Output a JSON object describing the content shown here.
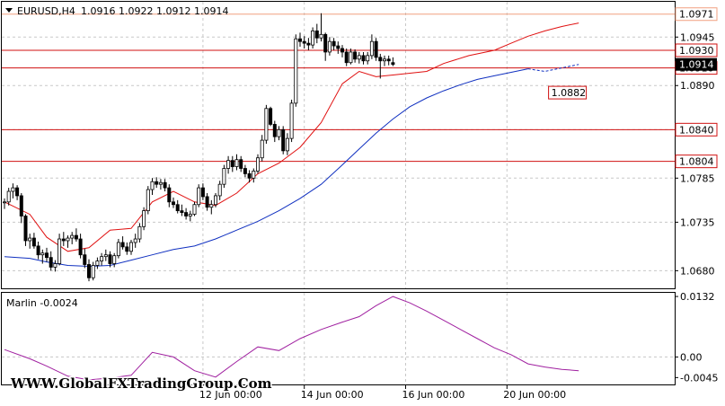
{
  "header": {
    "symbol": "EURUSD,H4",
    "ohlc": "1.0916 1.0922 1.0912 1.0914"
  },
  "indicator": {
    "name_value": "Marlin -0.0024",
    "color": "#a020a0",
    "axis_labels": [
      "0.0132",
      "0.00",
      "-0.0045"
    ]
  },
  "watermark": "WWW.GlobalFXTradingGroup.Com",
  "colors": {
    "bull_candle": "#ffffff",
    "bear_candle": "#000000",
    "ma_fast": "#e01010",
    "ma_slow": "#1030c0",
    "level_line": "#d01010",
    "top_level_line": "#f0a080"
  },
  "chart_data": {
    "type": "candlestick",
    "title": "EURUSD,H4",
    "ylim": [
      1.066,
      1.0985
    ],
    "y_ticks": [
      "1.0945",
      "1.0890",
      "1.0840",
      "1.0785",
      "1.0735",
      "1.0680"
    ],
    "x_ticks": [
      {
        "label": "12 Jun 00:00",
        "bar": 47
      },
      {
        "label": "14 Jun 00:00",
        "bar": 71
      },
      {
        "label": "16 Jun 00:00",
        "bar": 95
      },
      {
        "label": "20 Jun 00:00",
        "bar": 119
      }
    ],
    "levels": [
      {
        "value": 1.0971,
        "label": "1.0971",
        "style": "top"
      },
      {
        "value": 1.093,
        "label": "1.0930",
        "style": "level"
      },
      {
        "value": 1.091,
        "label": "1.0910",
        "style": "level"
      },
      {
        "value": 1.084,
        "label": "1.0840",
        "style": "level"
      },
      {
        "value": 1.0804,
        "label": "1.0804",
        "style": "level"
      }
    ],
    "current_price": {
      "value": 1.0914,
      "label": "1.0914"
    },
    "ma_projection": {
      "value": 1.0882,
      "label": "1.0882"
    },
    "candles": [
      [
        1.0757,
        1.0762,
        1.075,
        1.0758
      ],
      [
        1.0758,
        1.0774,
        1.0754,
        1.077
      ],
      [
        1.077,
        1.0779,
        1.0762,
        1.0774
      ],
      [
        1.0774,
        1.0777,
        1.076,
        1.0765
      ],
      [
        1.0765,
        1.0768,
        1.0734,
        1.0742
      ],
      [
        1.0742,
        1.0744,
        1.0708,
        1.0714
      ],
      [
        1.0714,
        1.0722,
        1.0705,
        1.0717
      ],
      [
        1.0717,
        1.0723,
        1.0705,
        1.0708
      ],
      [
        1.0708,
        1.0713,
        1.0693,
        1.0698
      ],
      [
        1.0698,
        1.0704,
        1.0688,
        1.07
      ],
      [
        1.07,
        1.0706,
        1.069,
        1.0695
      ],
      [
        1.0695,
        1.0702,
        1.068,
        1.0684
      ],
      [
        1.0684,
        1.0692,
        1.0679,
        1.0688
      ],
      [
        1.0688,
        1.0722,
        1.0686,
        1.0716
      ],
      [
        1.0716,
        1.0724,
        1.0708,
        1.0714
      ],
      [
        1.0714,
        1.072,
        1.0706,
        1.0717
      ],
      [
        1.0717,
        1.0724,
        1.071,
        1.072
      ],
      [
        1.072,
        1.0728,
        1.0713,
        1.0716
      ],
      [
        1.0716,
        1.0722,
        1.0694,
        1.0698
      ],
      [
        1.0698,
        1.0705,
        1.0683,
        1.0687
      ],
      [
        1.0687,
        1.0693,
        1.0668,
        1.0672
      ],
      [
        1.0672,
        1.069,
        1.0669,
        1.0686
      ],
      [
        1.0686,
        1.0695,
        1.0682,
        1.0691
      ],
      [
        1.0691,
        1.07,
        1.0686,
        1.0696
      ],
      [
        1.0696,
        1.0704,
        1.0691,
        1.0698
      ],
      [
        1.0698,
        1.0702,
        1.0684,
        1.0688
      ],
      [
        1.0688,
        1.07,
        1.0684,
        1.0697
      ],
      [
        1.0697,
        1.0716,
        1.0694,
        1.0712
      ],
      [
        1.0712,
        1.0719,
        1.0704,
        1.0707
      ],
      [
        1.0707,
        1.0712,
        1.0698,
        1.0702
      ],
      [
        1.0702,
        1.0715,
        1.0698,
        1.0712
      ],
      [
        1.0712,
        1.0722,
        1.0706,
        1.0716
      ],
      [
        1.0716,
        1.0734,
        1.0712,
        1.073
      ],
      [
        1.073,
        1.0752,
        1.0726,
        1.0748
      ],
      [
        1.0748,
        1.0776,
        1.0744,
        1.0772
      ],
      [
        1.0772,
        1.0785,
        1.0766,
        1.0781
      ],
      [
        1.0781,
        1.0786,
        1.0774,
        1.0778
      ],
      [
        1.0778,
        1.0784,
        1.0772,
        1.078
      ],
      [
        1.078,
        1.0784,
        1.077,
        1.0774
      ],
      [
        1.0774,
        1.0778,
        1.0752,
        1.0758
      ],
      [
        1.0758,
        1.0763,
        1.0751,
        1.0755
      ],
      [
        1.0755,
        1.076,
        1.0745,
        1.0748
      ],
      [
        1.0748,
        1.0755,
        1.0742,
        1.0746
      ],
      [
        1.0746,
        1.0751,
        1.0738,
        1.0742
      ],
      [
        1.0742,
        1.0748,
        1.0736,
        1.0744
      ],
      [
        1.0744,
        1.0758,
        1.0742,
        1.0755
      ],
      [
        1.0755,
        1.0778,
        1.0752,
        1.0774
      ],
      [
        1.0774,
        1.0779,
        1.076,
        1.0764
      ],
      [
        1.0764,
        1.0768,
        1.0748,
        1.0752
      ],
      [
        1.0752,
        1.076,
        1.0744,
        1.0755
      ],
      [
        1.0755,
        1.0768,
        1.0752,
        1.0765
      ],
      [
        1.0765,
        1.0782,
        1.076,
        1.0778
      ],
      [
        1.0778,
        1.08,
        1.0774,
        1.0796
      ],
      [
        1.0796,
        1.081,
        1.079,
        1.0805
      ],
      [
        1.0805,
        1.081,
        1.0792,
        1.0798
      ],
      [
        1.0798,
        1.0812,
        1.0794,
        1.0806
      ],
      [
        1.0806,
        1.081,
        1.0792,
        1.0796
      ],
      [
        1.0796,
        1.08,
        1.0786,
        1.079
      ],
      [
        1.079,
        1.0794,
        1.078,
        1.0785
      ],
      [
        1.0785,
        1.0796,
        1.078,
        1.0793
      ],
      [
        1.0793,
        1.0812,
        1.079,
        1.0808
      ],
      [
        1.0808,
        1.0834,
        1.0804,
        1.0828
      ],
      [
        1.0828,
        1.0868,
        1.0824,
        1.0864
      ],
      [
        1.0864,
        1.0866,
        1.0844,
        1.0846
      ],
      [
        1.0846,
        1.085,
        1.0826,
        1.0832
      ],
      [
        1.0832,
        1.0844,
        1.0828,
        1.084
      ],
      [
        1.084,
        1.0844,
        1.0812,
        1.0816
      ],
      [
        1.0816,
        1.0836,
        1.0811,
        1.083
      ],
      [
        1.083,
        1.0874,
        1.0826,
        1.087
      ],
      [
        1.087,
        1.0948,
        1.0866,
        1.0943
      ],
      [
        1.0943,
        1.095,
        1.0934,
        1.094
      ],
      [
        1.094,
        1.0946,
        1.0932,
        1.0938
      ],
      [
        1.0938,
        1.0944,
        1.093,
        1.0936
      ],
      [
        1.0936,
        1.0956,
        1.0932,
        1.0952
      ],
      [
        1.0952,
        1.096,
        1.0938,
        1.0944
      ],
      [
        1.0944,
        1.0972,
        1.094,
        1.0948
      ],
      [
        1.0948,
        1.095,
        1.0918,
        1.0928
      ],
      [
        1.0928,
        1.0945,
        1.0924,
        1.094
      ],
      [
        1.094,
        1.0944,
        1.093,
        1.0935
      ],
      [
        1.0935,
        1.094,
        1.0926,
        1.0932
      ],
      [
        1.0932,
        1.0936,
        1.0922,
        1.0928
      ],
      [
        1.0928,
        1.0932,
        1.0912,
        1.0916
      ],
      [
        1.0916,
        1.0932,
        1.0914,
        1.0928
      ],
      [
        1.0928,
        1.0931,
        1.0916,
        1.092
      ],
      [
        1.092,
        1.0928,
        1.0915,
        1.0924
      ],
      [
        1.0924,
        1.0928,
        1.0914,
        1.0918
      ],
      [
        1.0918,
        1.0928,
        1.0914,
        1.0924
      ],
      [
        1.0924,
        1.0948,
        1.092,
        1.094
      ],
      [
        1.094,
        1.0944,
        1.0918,
        1.0922
      ],
      [
        1.0922,
        1.0926,
        1.0898,
        1.0918
      ],
      [
        1.0918,
        1.0924,
        1.0912,
        1.092
      ],
      [
        1.092,
        1.0924,
        1.0913,
        1.0918
      ],
      [
        1.0916,
        1.0922,
        1.0912,
        1.0914
      ]
    ],
    "ma_fast": [
      [
        0,
        1.0758
      ],
      [
        6,
        1.0744
      ],
      [
        10,
        1.0718
      ],
      [
        15,
        1.0702
      ],
      [
        20,
        1.0706
      ],
      [
        25,
        1.0726
      ],
      [
        30,
        1.0728
      ],
      [
        35,
        1.0758
      ],
      [
        40,
        1.077
      ],
      [
        45,
        1.0758
      ],
      [
        50,
        1.0754
      ],
      [
        55,
        1.0768
      ],
      [
        60,
        1.079
      ],
      [
        65,
        1.0802
      ],
      [
        70,
        1.082
      ],
      [
        75,
        1.0848
      ],
      [
        80,
        1.0892
      ],
      [
        84,
        1.0906
      ],
      [
        88,
        1.09
      ],
      [
        92,
        1.0902
      ],
      [
        96,
        1.0904
      ],
      [
        100,
        1.0906
      ],
      [
        104,
        1.0915
      ],
      [
        110,
        1.0924
      ],
      [
        116,
        1.093
      ],
      [
        120,
        1.0938
      ],
      [
        124,
        1.0946
      ],
      [
        128,
        1.0952
      ],
      [
        132,
        1.0957
      ],
      [
        136,
        1.0961
      ]
    ],
    "ma_slow": [
      [
        0,
        1.0696
      ],
      [
        6,
        1.0694
      ],
      [
        10,
        1.069
      ],
      [
        15,
        1.0686
      ],
      [
        20,
        1.0685
      ],
      [
        25,
        1.0686
      ],
      [
        30,
        1.0692
      ],
      [
        35,
        1.0698
      ],
      [
        40,
        1.0704
      ],
      [
        45,
        1.0708
      ],
      [
        50,
        1.0716
      ],
      [
        55,
        1.0726
      ],
      [
        60,
        1.0736
      ],
      [
        65,
        1.0748
      ],
      [
        70,
        1.0762
      ],
      [
        75,
        1.0778
      ],
      [
        80,
        1.08
      ],
      [
        84,
        1.0818
      ],
      [
        88,
        1.0836
      ],
      [
        92,
        1.0852
      ],
      [
        96,
        1.0866
      ],
      [
        100,
        1.0876
      ],
      [
        104,
        1.0884
      ],
      [
        108,
        1.0891
      ],
      [
        112,
        1.0897
      ],
      [
        116,
        1.0901
      ],
      [
        120,
        1.0905
      ],
      [
        124,
        1.0909
      ]
    ],
    "ma_slow_projection": [
      [
        124,
        1.0909
      ],
      [
        128,
        1.0906
      ],
      [
        132,
        1.091
      ],
      [
        136,
        1.0914
      ]
    ],
    "indicator_values": [
      [
        0,
        0.0016
      ],
      [
        6,
        -0.0004
      ],
      [
        10,
        -0.002
      ],
      [
        15,
        -0.0042
      ],
      [
        20,
        -0.005
      ],
      [
        25,
        -0.0046
      ],
      [
        30,
        -0.004
      ],
      [
        35,
        0.001
      ],
      [
        40,
        0.0
      ],
      [
        45,
        -0.003
      ],
      [
        50,
        -0.0044
      ],
      [
        55,
        -0.001
      ],
      [
        60,
        0.0022
      ],
      [
        65,
        0.0014
      ],
      [
        70,
        0.004
      ],
      [
        75,
        0.006
      ],
      [
        80,
        0.0076
      ],
      [
        84,
        0.0088
      ],
      [
        88,
        0.0112
      ],
      [
        92,
        0.0132
      ],
      [
        96,
        0.0118
      ],
      [
        100,
        0.01
      ],
      [
        104,
        0.008
      ],
      [
        108,
        0.006
      ],
      [
        112,
        0.004
      ],
      [
        116,
        0.002
      ],
      [
        120,
        0.0005
      ],
      [
        124,
        -0.0015
      ],
      [
        128,
        -0.0022
      ],
      [
        132,
        -0.0027
      ],
      [
        136,
        -0.003
      ]
    ]
  }
}
